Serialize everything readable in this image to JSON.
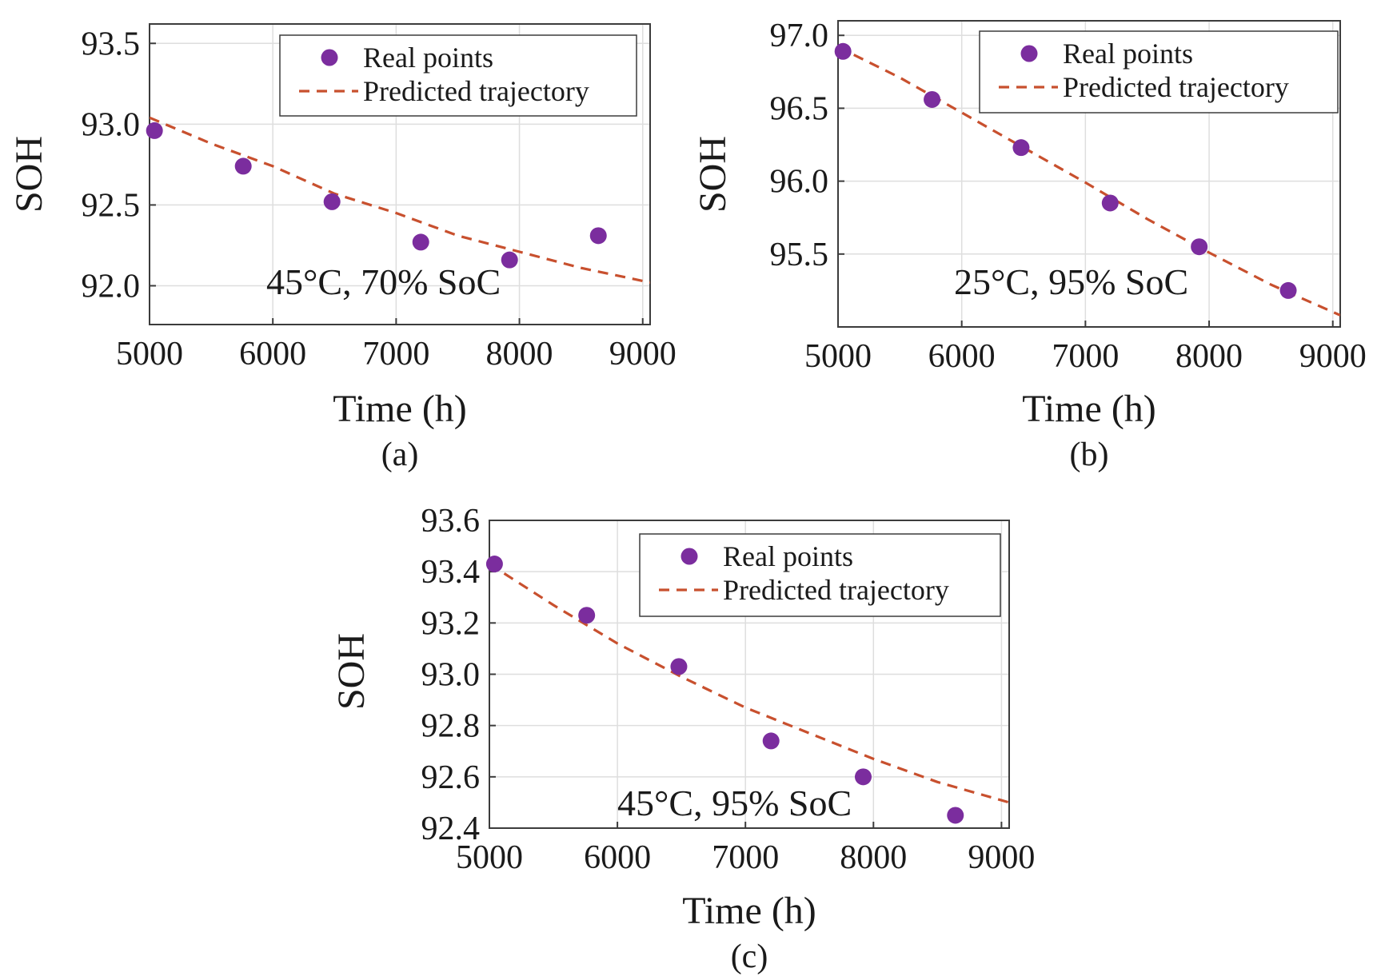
{
  "chart_data": [
    {
      "type": "scatter",
      "panel_label": "(a)",
      "annotation": "45°C, 70% SoC",
      "xlabel": "Time (h)",
      "ylabel": "SOH",
      "xlim": [
        5000,
        9060
      ],
      "ylim": [
        91.76,
        93.62
      ],
      "xticks": [
        5000,
        6000,
        7000,
        8000,
        9000
      ],
      "yticks": [
        92.0,
        92.5,
        93.0,
        93.5
      ],
      "ytick_labels": [
        "92.0",
        "92.5",
        "93.0",
        "93.5"
      ],
      "grid": true,
      "legend_position": "top-right",
      "series": [
        {
          "name": "Real points",
          "kind": "scatter",
          "color": "#7b2d9e",
          "x": [
            5040,
            5760,
            6480,
            7200,
            7920,
            8640
          ],
          "y": [
            92.96,
            92.74,
            92.52,
            92.27,
            92.16,
            92.31
          ]
        },
        {
          "name": "Predicted trajectory",
          "kind": "dashed-line",
          "color": "#c8502e",
          "x": [
            5000,
            5500,
            6000,
            6500,
            7000,
            7500,
            8000,
            8500,
            9060
          ],
          "y": [
            93.04,
            92.88,
            92.74,
            92.57,
            92.45,
            92.31,
            92.21,
            92.11,
            92.02
          ]
        }
      ]
    },
    {
      "type": "scatter",
      "panel_label": "(b)",
      "annotation": "25°C, 95% SoC",
      "xlabel": "Time (h)",
      "ylabel": "SOH",
      "xlim": [
        5000,
        9060
      ],
      "ylim": [
        95.0,
        97.1
      ],
      "xticks": [
        5000,
        6000,
        7000,
        8000,
        9000
      ],
      "yticks": [
        95.5,
        96.0,
        96.5,
        97.0
      ],
      "ytick_labels": [
        "95.5",
        "96.0",
        "96.5",
        "97.0"
      ],
      "grid": true,
      "legend_position": "top-right",
      "series": [
        {
          "name": "Real points",
          "kind": "scatter",
          "color": "#7b2d9e",
          "x": [
            5040,
            5760,
            6480,
            7200,
            7920,
            8640
          ],
          "y": [
            96.89,
            96.56,
            96.23,
            95.85,
            95.55,
            95.25
          ]
        },
        {
          "name": "Predicted trajectory",
          "kind": "dashed-line",
          "color": "#c8502e",
          "x": [
            5000,
            5500,
            6000,
            6500,
            7000,
            7500,
            8000,
            8500,
            9060
          ],
          "y": [
            96.92,
            96.71,
            96.47,
            96.23,
            95.99,
            95.74,
            95.51,
            95.29,
            95.08
          ]
        }
      ]
    },
    {
      "type": "scatter",
      "panel_label": "(c)",
      "annotation": "45°C, 95% SoC",
      "xlabel": "Time (h)",
      "ylabel": "SOH",
      "xlim": [
        5000,
        9060
      ],
      "ylim": [
        92.4,
        93.6
      ],
      "xticks": [
        5000,
        6000,
        7000,
        8000,
        9000
      ],
      "yticks": [
        92.4,
        92.6,
        92.8,
        93.0,
        93.2,
        93.4,
        93.6
      ],
      "ytick_labels": [
        "92.4",
        "92.6",
        "92.8",
        "93.0",
        "93.2",
        "93.4",
        "93.6"
      ],
      "grid": true,
      "legend_position": "top-right",
      "series": [
        {
          "name": "Real points",
          "kind": "scatter",
          "color": "#7b2d9e",
          "x": [
            5040,
            5760,
            6480,
            7200,
            7920,
            8640
          ],
          "y": [
            93.43,
            93.23,
            93.03,
            92.74,
            92.6,
            92.45
          ]
        },
        {
          "name": "Predicted trajectory",
          "kind": "dashed-line",
          "color": "#c8502e",
          "x": [
            5000,
            5500,
            6000,
            6500,
            7000,
            7500,
            8000,
            8500,
            9060
          ],
          "y": [
            93.43,
            93.27,
            93.12,
            92.99,
            92.87,
            92.77,
            92.67,
            92.58,
            92.5
          ]
        }
      ]
    }
  ]
}
